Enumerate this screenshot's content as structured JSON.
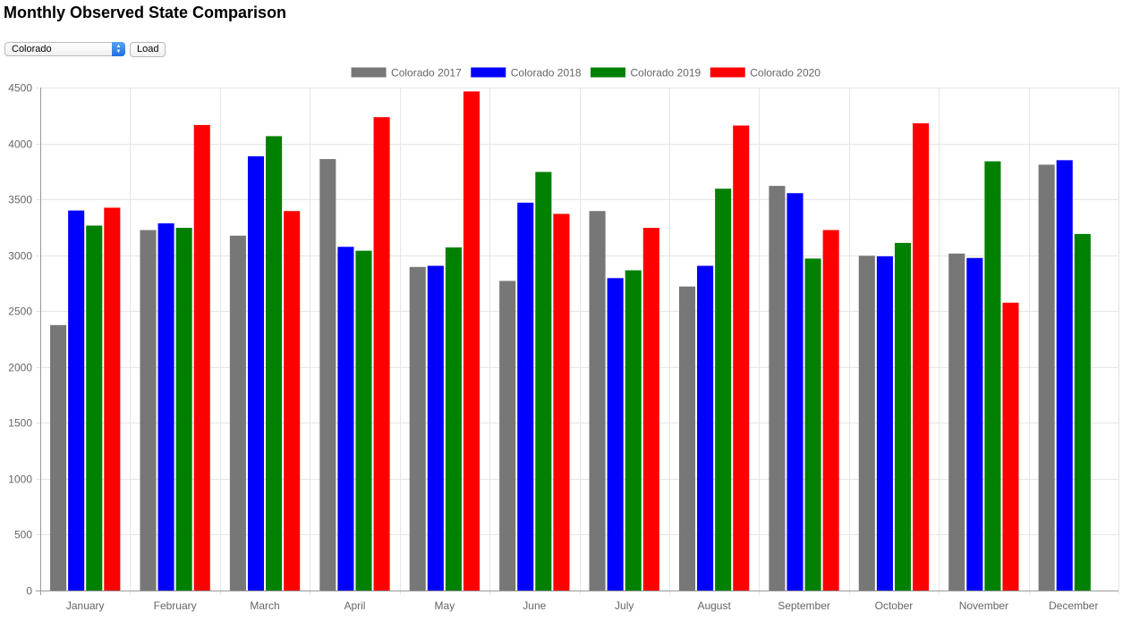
{
  "page": {
    "title": "Monthly Observed State Comparison"
  },
  "controls": {
    "state_selected": "Colorado",
    "load_label": "Load"
  },
  "colors": {
    "grid": "#e5e5e5",
    "axis": "#999999",
    "tick_text": "#666666"
  },
  "chart_data": {
    "type": "bar",
    "title": "",
    "xlabel": "",
    "ylabel": "",
    "ylim": [
      0,
      4500
    ],
    "y_ticks": [
      0,
      500,
      1000,
      1500,
      2000,
      2500,
      3000,
      3500,
      4000,
      4500
    ],
    "grid": true,
    "legend_position": "top-center",
    "categories": [
      "January",
      "February",
      "March",
      "April",
      "May",
      "June",
      "July",
      "August",
      "September",
      "October",
      "November",
      "December"
    ],
    "series": [
      {
        "name": "Colorado 2017",
        "color": "#777777",
        "values": [
          2375,
          3225,
          3175,
          3860,
          2895,
          2770,
          3395,
          2720,
          3620,
          2995,
          3015,
          3810
        ]
      },
      {
        "name": "Colorado 2018",
        "color": "#0000ff",
        "values": [
          3400,
          3285,
          3885,
          3075,
          2905,
          3470,
          2795,
          2905,
          3555,
          2990,
          2975,
          3850
        ]
      },
      {
        "name": "Colorado 2019",
        "color": "#008000",
        "values": [
          3265,
          3245,
          4065,
          3040,
          3070,
          3745,
          2865,
          3595,
          2970,
          3110,
          3840,
          3190
        ]
      },
      {
        "name": "Colorado 2020",
        "color": "#ff0000",
        "values": [
          3425,
          4165,
          3395,
          4235,
          4465,
          3370,
          3245,
          4160,
          3225,
          4180,
          2575,
          null
        ]
      }
    ]
  }
}
